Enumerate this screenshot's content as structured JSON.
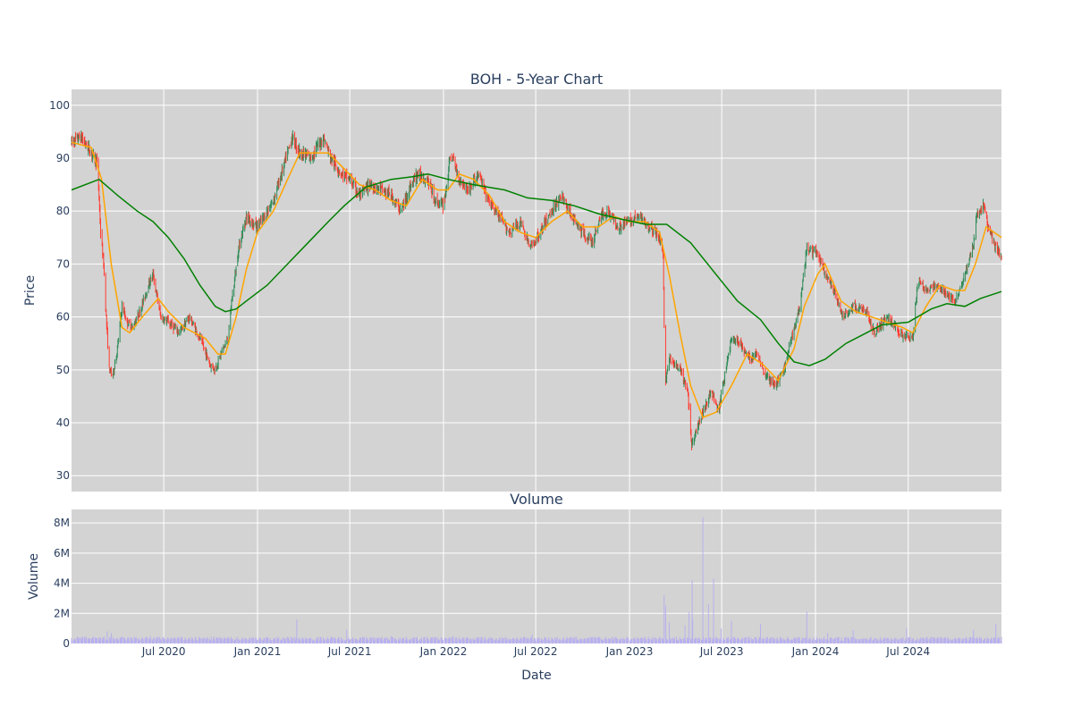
{
  "chart_data": [
    {
      "type": "candlestick",
      "title": "BOH - 5-Year Chart",
      "ylabel": "Price",
      "ylim": [
        27,
        103
      ],
      "yticks": [
        30,
        40,
        50,
        60,
        70,
        80,
        90,
        100
      ],
      "xlim": [
        "2020-01-02",
        "2024-12-31"
      ],
      "grid": true,
      "background": "#d3d3d3",
      "colors": {
        "up": "#2e8b57",
        "down": "#ff3b30",
        "sma_short": "#ffa500",
        "sma_long": "#008000"
      },
      "price_path": [
        [
          "2020-01-02",
          93
        ],
        [
          "2020-01-20",
          94
        ],
        [
          "2020-02-10",
          91
        ],
        [
          "2020-02-22",
          89
        ],
        [
          "2020-02-28",
          76
        ],
        [
          "2020-03-05",
          70
        ],
        [
          "2020-03-10",
          60
        ],
        [
          "2020-03-16",
          50
        ],
        [
          "2020-03-23",
          49
        ],
        [
          "2020-04-01",
          54
        ],
        [
          "2020-04-10",
          62
        ],
        [
          "2020-04-20",
          59
        ],
        [
          "2020-05-01",
          58
        ],
        [
          "2020-05-15",
          61
        ],
        [
          "2020-06-01",
          66
        ],
        [
          "2020-06-10",
          68
        ],
        [
          "2020-06-25",
          60
        ],
        [
          "2020-07-10",
          59
        ],
        [
          "2020-08-01",
          57
        ],
        [
          "2020-08-20",
          60
        ],
        [
          "2020-09-10",
          56
        ],
        [
          "2020-09-30",
          51
        ],
        [
          "2020-10-10",
          50
        ],
        [
          "2020-10-25",
          54
        ],
        [
          "2020-11-05",
          56
        ],
        [
          "2020-11-10",
          62
        ],
        [
          "2020-11-25",
          73
        ],
        [
          "2020-12-10",
          79
        ],
        [
          "2020-12-31",
          77
        ],
        [
          "2021-01-15",
          79
        ],
        [
          "2021-02-01",
          82
        ],
        [
          "2021-02-20",
          88
        ],
        [
          "2021-03-10",
          94
        ],
        [
          "2021-03-25",
          91
        ],
        [
          "2021-04-15",
          90
        ],
        [
          "2021-05-10",
          94
        ],
        [
          "2021-05-25",
          90
        ],
        [
          "2021-06-15",
          87
        ],
        [
          "2021-07-01",
          86
        ],
        [
          "2021-07-20",
          83
        ],
        [
          "2021-08-10",
          85
        ],
        [
          "2021-09-01",
          84
        ],
        [
          "2021-09-20",
          83
        ],
        [
          "2021-10-10",
          80
        ],
        [
          "2021-10-25",
          84
        ],
        [
          "2021-11-10",
          87
        ],
        [
          "2021-12-01",
          86
        ],
        [
          "2021-12-15",
          82
        ],
        [
          "2022-01-01",
          81
        ],
        [
          "2022-01-10",
          87
        ],
        [
          "2022-01-15",
          91
        ],
        [
          "2022-02-01",
          86
        ],
        [
          "2022-02-20",
          84
        ],
        [
          "2022-03-10",
          87
        ],
        [
          "2022-03-30",
          82
        ],
        [
          "2022-04-20",
          79
        ],
        [
          "2022-05-10",
          76
        ],
        [
          "2022-06-01",
          78
        ],
        [
          "2022-06-20",
          73
        ],
        [
          "2022-07-10",
          76
        ],
        [
          "2022-08-01",
          80
        ],
        [
          "2022-08-20",
          83
        ],
        [
          "2022-09-10",
          79
        ],
        [
          "2022-09-30",
          76
        ],
        [
          "2022-10-20",
          74
        ],
        [
          "2022-11-05",
          79
        ],
        [
          "2022-11-20",
          80
        ],
        [
          "2022-12-10",
          77
        ],
        [
          "2022-12-31",
          78
        ],
        [
          "2023-01-20",
          79
        ],
        [
          "2023-02-10",
          77
        ],
        [
          "2023-03-01",
          75
        ],
        [
          "2023-03-08",
          72
        ],
        [
          "2023-03-10",
          58
        ],
        [
          "2023-03-13",
          48
        ],
        [
          "2023-03-20",
          52
        ],
        [
          "2023-04-10",
          50
        ],
        [
          "2023-04-25",
          46
        ],
        [
          "2023-05-03",
          36
        ],
        [
          "2023-05-10",
          38
        ],
        [
          "2023-05-25",
          42
        ],
        [
          "2023-06-10",
          46
        ],
        [
          "2023-06-25",
          42
        ],
        [
          "2023-07-05",
          48
        ],
        [
          "2023-07-20",
          56
        ],
        [
          "2023-08-05",
          55
        ],
        [
          "2023-08-25",
          52
        ],
        [
          "2023-09-10",
          53
        ],
        [
          "2023-09-25",
          49
        ],
        [
          "2023-10-15",
          47
        ],
        [
          "2023-10-31",
          50
        ],
        [
          "2023-11-15",
          56
        ],
        [
          "2023-12-01",
          62
        ],
        [
          "2023-12-15",
          73
        ],
        [
          "2024-01-05",
          72
        ],
        [
          "2024-01-20",
          68
        ],
        [
          "2024-02-05",
          65
        ],
        [
          "2024-02-25",
          60
        ],
        [
          "2024-03-15",
          62
        ],
        [
          "2024-04-10",
          61
        ],
        [
          "2024-04-25",
          57
        ],
        [
          "2024-05-20",
          60
        ],
        [
          "2024-06-15",
          57
        ],
        [
          "2024-07-10",
          56
        ],
        [
          "2024-07-20",
          67
        ],
        [
          "2024-08-05",
          65
        ],
        [
          "2024-08-25",
          66
        ],
        [
          "2024-09-15",
          64
        ],
        [
          "2024-10-01",
          63
        ],
        [
          "2024-10-20",
          68
        ],
        [
          "2024-11-05",
          73
        ],
        [
          "2024-11-12",
          79
        ],
        [
          "2024-11-25",
          81
        ],
        [
          "2024-12-05",
          77
        ],
        [
          "2024-12-15",
          74
        ],
        [
          "2024-12-31",
          71
        ]
      ],
      "sma_short_path": [
        [
          "2020-01-02",
          93
        ],
        [
          "2020-02-10",
          92
        ],
        [
          "2020-03-01",
          86
        ],
        [
          "2020-03-20",
          70
        ],
        [
          "2020-04-10",
          58
        ],
        [
          "2020-04-25",
          57
        ],
        [
          "2020-05-20",
          60
        ],
        [
          "2020-06-20",
          63.5
        ],
        [
          "2020-07-10",
          61
        ],
        [
          "2020-08-10",
          58
        ],
        [
          "2020-09-20",
          56
        ],
        [
          "2020-10-15",
          53
        ],
        [
          "2020-10-30",
          53
        ],
        [
          "2020-11-20",
          60
        ],
        [
          "2020-12-10",
          69
        ],
        [
          "2021-01-01",
          76
        ],
        [
          "2021-02-01",
          80
        ],
        [
          "2021-03-01",
          86
        ],
        [
          "2021-03-25",
          91
        ],
        [
          "2021-04-20",
          91
        ],
        [
          "2021-05-20",
          91
        ],
        [
          "2021-06-20",
          88
        ],
        [
          "2021-07-20",
          85
        ],
        [
          "2021-08-20",
          84
        ],
        [
          "2021-09-20",
          82
        ],
        [
          "2021-10-20",
          81
        ],
        [
          "2021-11-20",
          86
        ],
        [
          "2021-12-20",
          84
        ],
        [
          "2022-01-10",
          84
        ],
        [
          "2022-02-01",
          87
        ],
        [
          "2022-03-01",
          86
        ],
        [
          "2022-04-01",
          83
        ],
        [
          "2022-05-01",
          78
        ],
        [
          "2022-06-01",
          76
        ],
        [
          "2022-07-01",
          75
        ],
        [
          "2022-08-01",
          78
        ],
        [
          "2022-09-01",
          80
        ],
        [
          "2022-10-01",
          77
        ],
        [
          "2022-11-01",
          77
        ],
        [
          "2022-12-01",
          79
        ],
        [
          "2023-01-01",
          78
        ],
        [
          "2023-02-01",
          78
        ],
        [
          "2023-03-01",
          76
        ],
        [
          "2023-03-20",
          68
        ],
        [
          "2023-04-10",
          57
        ],
        [
          "2023-05-01",
          47
        ],
        [
          "2023-05-25",
          41
        ],
        [
          "2023-06-20",
          42
        ],
        [
          "2023-07-20",
          47
        ],
        [
          "2023-08-20",
          53
        ],
        [
          "2023-09-20",
          51
        ],
        [
          "2023-10-20",
          48
        ],
        [
          "2023-11-20",
          54
        ],
        [
          "2023-12-10",
          62
        ],
        [
          "2024-01-05",
          68
        ],
        [
          "2024-01-20",
          70
        ],
        [
          "2024-02-20",
          63
        ],
        [
          "2024-03-20",
          61
        ],
        [
          "2024-04-20",
          60
        ],
        [
          "2024-05-20",
          59
        ],
        [
          "2024-06-20",
          58
        ],
        [
          "2024-07-10",
          57
        ],
        [
          "2024-08-05",
          62
        ],
        [
          "2024-09-01",
          66
        ],
        [
          "2024-10-01",
          65
        ],
        [
          "2024-10-20",
          65
        ],
        [
          "2024-11-10",
          70
        ],
        [
          "2024-12-01",
          77
        ],
        [
          "2024-12-31",
          75
        ]
      ],
      "sma_long_path": [
        [
          "2020-01-02",
          84
        ],
        [
          "2020-02-25",
          86
        ],
        [
          "2020-04-01",
          83
        ],
        [
          "2020-05-10",
          80
        ],
        [
          "2020-06-10",
          78
        ],
        [
          "2020-07-10",
          75
        ],
        [
          "2020-08-10",
          71
        ],
        [
          "2020-09-10",
          66
        ],
        [
          "2020-10-10",
          62
        ],
        [
          "2020-10-30",
          61
        ],
        [
          "2020-11-20",
          61.5
        ],
        [
          "2020-12-10",
          63
        ],
        [
          "2021-01-20",
          66
        ],
        [
          "2021-03-01",
          70
        ],
        [
          "2021-04-10",
          74
        ],
        [
          "2021-05-20",
          78
        ],
        [
          "2021-06-20",
          81
        ],
        [
          "2021-08-01",
          84.5
        ],
        [
          "2021-09-20",
          86
        ],
        [
          "2021-11-01",
          86.5
        ],
        [
          "2021-12-01",
          87
        ],
        [
          "2022-01-10",
          86
        ],
        [
          "2022-03-01",
          85
        ],
        [
          "2022-05-01",
          84
        ],
        [
          "2022-06-15",
          82.5
        ],
        [
          "2022-08-01",
          82
        ],
        [
          "2022-09-15",
          81
        ],
        [
          "2022-11-01",
          79.5
        ],
        [
          "2022-12-15",
          78.5
        ],
        [
          "2023-02-01",
          77.5
        ],
        [
          "2023-03-15",
          77.5
        ],
        [
          "2023-05-01",
          74
        ],
        [
          "2023-06-20",
          68
        ],
        [
          "2023-08-01",
          63
        ],
        [
          "2023-09-15",
          59.5
        ],
        [
          "2023-10-20",
          55
        ],
        [
          "2023-11-20",
          51.5
        ],
        [
          "2023-12-20",
          50.8
        ],
        [
          "2024-01-20",
          52
        ],
        [
          "2024-03-01",
          55
        ],
        [
          "2024-04-10",
          57
        ],
        [
          "2024-05-10",
          58.5
        ],
        [
          "2024-07-01",
          59
        ],
        [
          "2024-08-15",
          61.5
        ],
        [
          "2024-09-15",
          62.5
        ],
        [
          "2024-10-20",
          62
        ],
        [
          "2024-11-20",
          63.5
        ],
        [
          "2024-12-31",
          64.8
        ]
      ],
      "xticks": [
        {
          "date": "2020-07-01",
          "label": "Jul 2020"
        },
        {
          "date": "2021-01-01",
          "label": "Jan 2021"
        },
        {
          "date": "2021-07-01",
          "label": "Jul 2021"
        },
        {
          "date": "2022-01-01",
          "label": "Jan 2022"
        },
        {
          "date": "2022-07-01",
          "label": "Jul 2022"
        },
        {
          "date": "2023-01-01",
          "label": "Jan 2023"
        },
        {
          "date": "2023-07-01",
          "label": "Jul 2023"
        },
        {
          "date": "2024-01-01",
          "label": "Jan 2024"
        },
        {
          "date": "2024-07-01",
          "label": "Jul 2024"
        }
      ]
    },
    {
      "type": "bar",
      "title": "Volume",
      "ylabel": "Volume",
      "xlabel": "Date",
      "ylim": [
        0,
        8900000
      ],
      "yticks": [
        {
          "value": 0,
          "label": "0"
        },
        {
          "value": 2000000,
          "label": "2M"
        },
        {
          "value": 4000000,
          "label": "4M"
        },
        {
          "value": 6000000,
          "label": "6M"
        },
        {
          "value": 8000000,
          "label": "8M"
        }
      ],
      "color": "#b8b0ee",
      "background": "#d3d3d3",
      "baseline_volume": 300000,
      "spikes": [
        [
          "2020-03-12",
          800000
        ],
        [
          "2020-03-20",
          700000
        ],
        [
          "2020-06-05",
          500000
        ],
        [
          "2020-12-20",
          600000
        ],
        [
          "2021-03-19",
          1600000
        ],
        [
          "2021-06-25",
          900000
        ],
        [
          "2021-09-20",
          500000
        ],
        [
          "2022-01-20",
          500000
        ],
        [
          "2022-06-24",
          600000
        ],
        [
          "2023-03-10",
          3200000
        ],
        [
          "2023-03-13",
          2500000
        ],
        [
          "2023-03-20",
          1400000
        ],
        [
          "2023-04-20",
          1200000
        ],
        [
          "2023-04-28",
          2100000
        ],
        [
          "2023-05-04",
          4200000
        ],
        [
          "2023-05-05",
          1600000
        ],
        [
          "2023-05-25",
          8400000
        ],
        [
          "2023-06-05",
          2600000
        ],
        [
          "2023-06-15",
          4300000
        ],
        [
          "2023-06-30",
          1000000
        ],
        [
          "2023-07-20",
          1500000
        ],
        [
          "2023-09-15",
          1300000
        ],
        [
          "2023-12-15",
          2100000
        ],
        [
          "2024-01-25",
          700000
        ],
        [
          "2024-03-15",
          900000
        ],
        [
          "2024-06-28",
          1000000
        ],
        [
          "2024-11-06",
          900000
        ],
        [
          "2024-12-20",
          1300000
        ]
      ]
    }
  ],
  "xaxis": {
    "label": "Date"
  }
}
